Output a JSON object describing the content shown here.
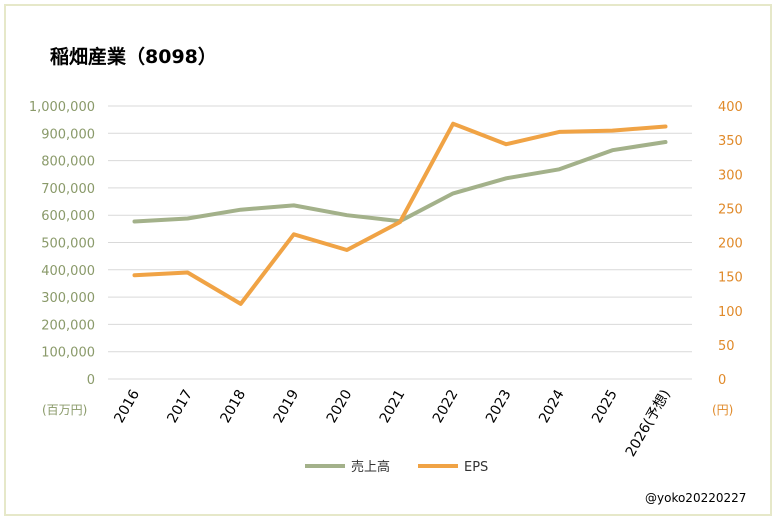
{
  "chart_data": {
    "type": "line",
    "title": "稲畑産業（8098）",
    "categories": [
      "2016",
      "2017",
      "2018",
      "2019",
      "2020",
      "2021",
      "2022",
      "2023",
      "2024",
      "2025",
      "2026(予想)"
    ],
    "series": [
      {
        "name": "売上高",
        "axis": "left",
        "color": "#a3b18a",
        "values": [
          577000,
          588000,
          620000,
          636000,
          600000,
          578000,
          680000,
          735000,
          768000,
          838000,
          868000
        ]
      },
      {
        "name": "EPS",
        "axis": "right",
        "color": "#f0a345",
        "values": [
          152,
          156,
          110,
          212,
          189,
          230,
          374,
          344,
          362,
          364,
          370
        ]
      }
    ],
    "y_left": {
      "ylim": [
        0,
        1000000
      ],
      "ticks": [
        "0",
        "100,000",
        "200,000",
        "300,000",
        "400,000",
        "500,000",
        "600,000",
        "700,000",
        "800,000",
        "900,000",
        "1,000,000"
      ],
      "unit": "(百万円)",
      "color": "#8a9a6a"
    },
    "y_right": {
      "ylim": [
        0,
        400
      ],
      "ticks": [
        "0",
        "50",
        "100",
        "150",
        "200",
        "250",
        "300",
        "350",
        "400"
      ],
      "unit": "(円)",
      "color": "#e08a2a"
    },
    "grid": true,
    "legend": "bottom"
  },
  "footer": {
    "credit": "@yoko20220227"
  }
}
